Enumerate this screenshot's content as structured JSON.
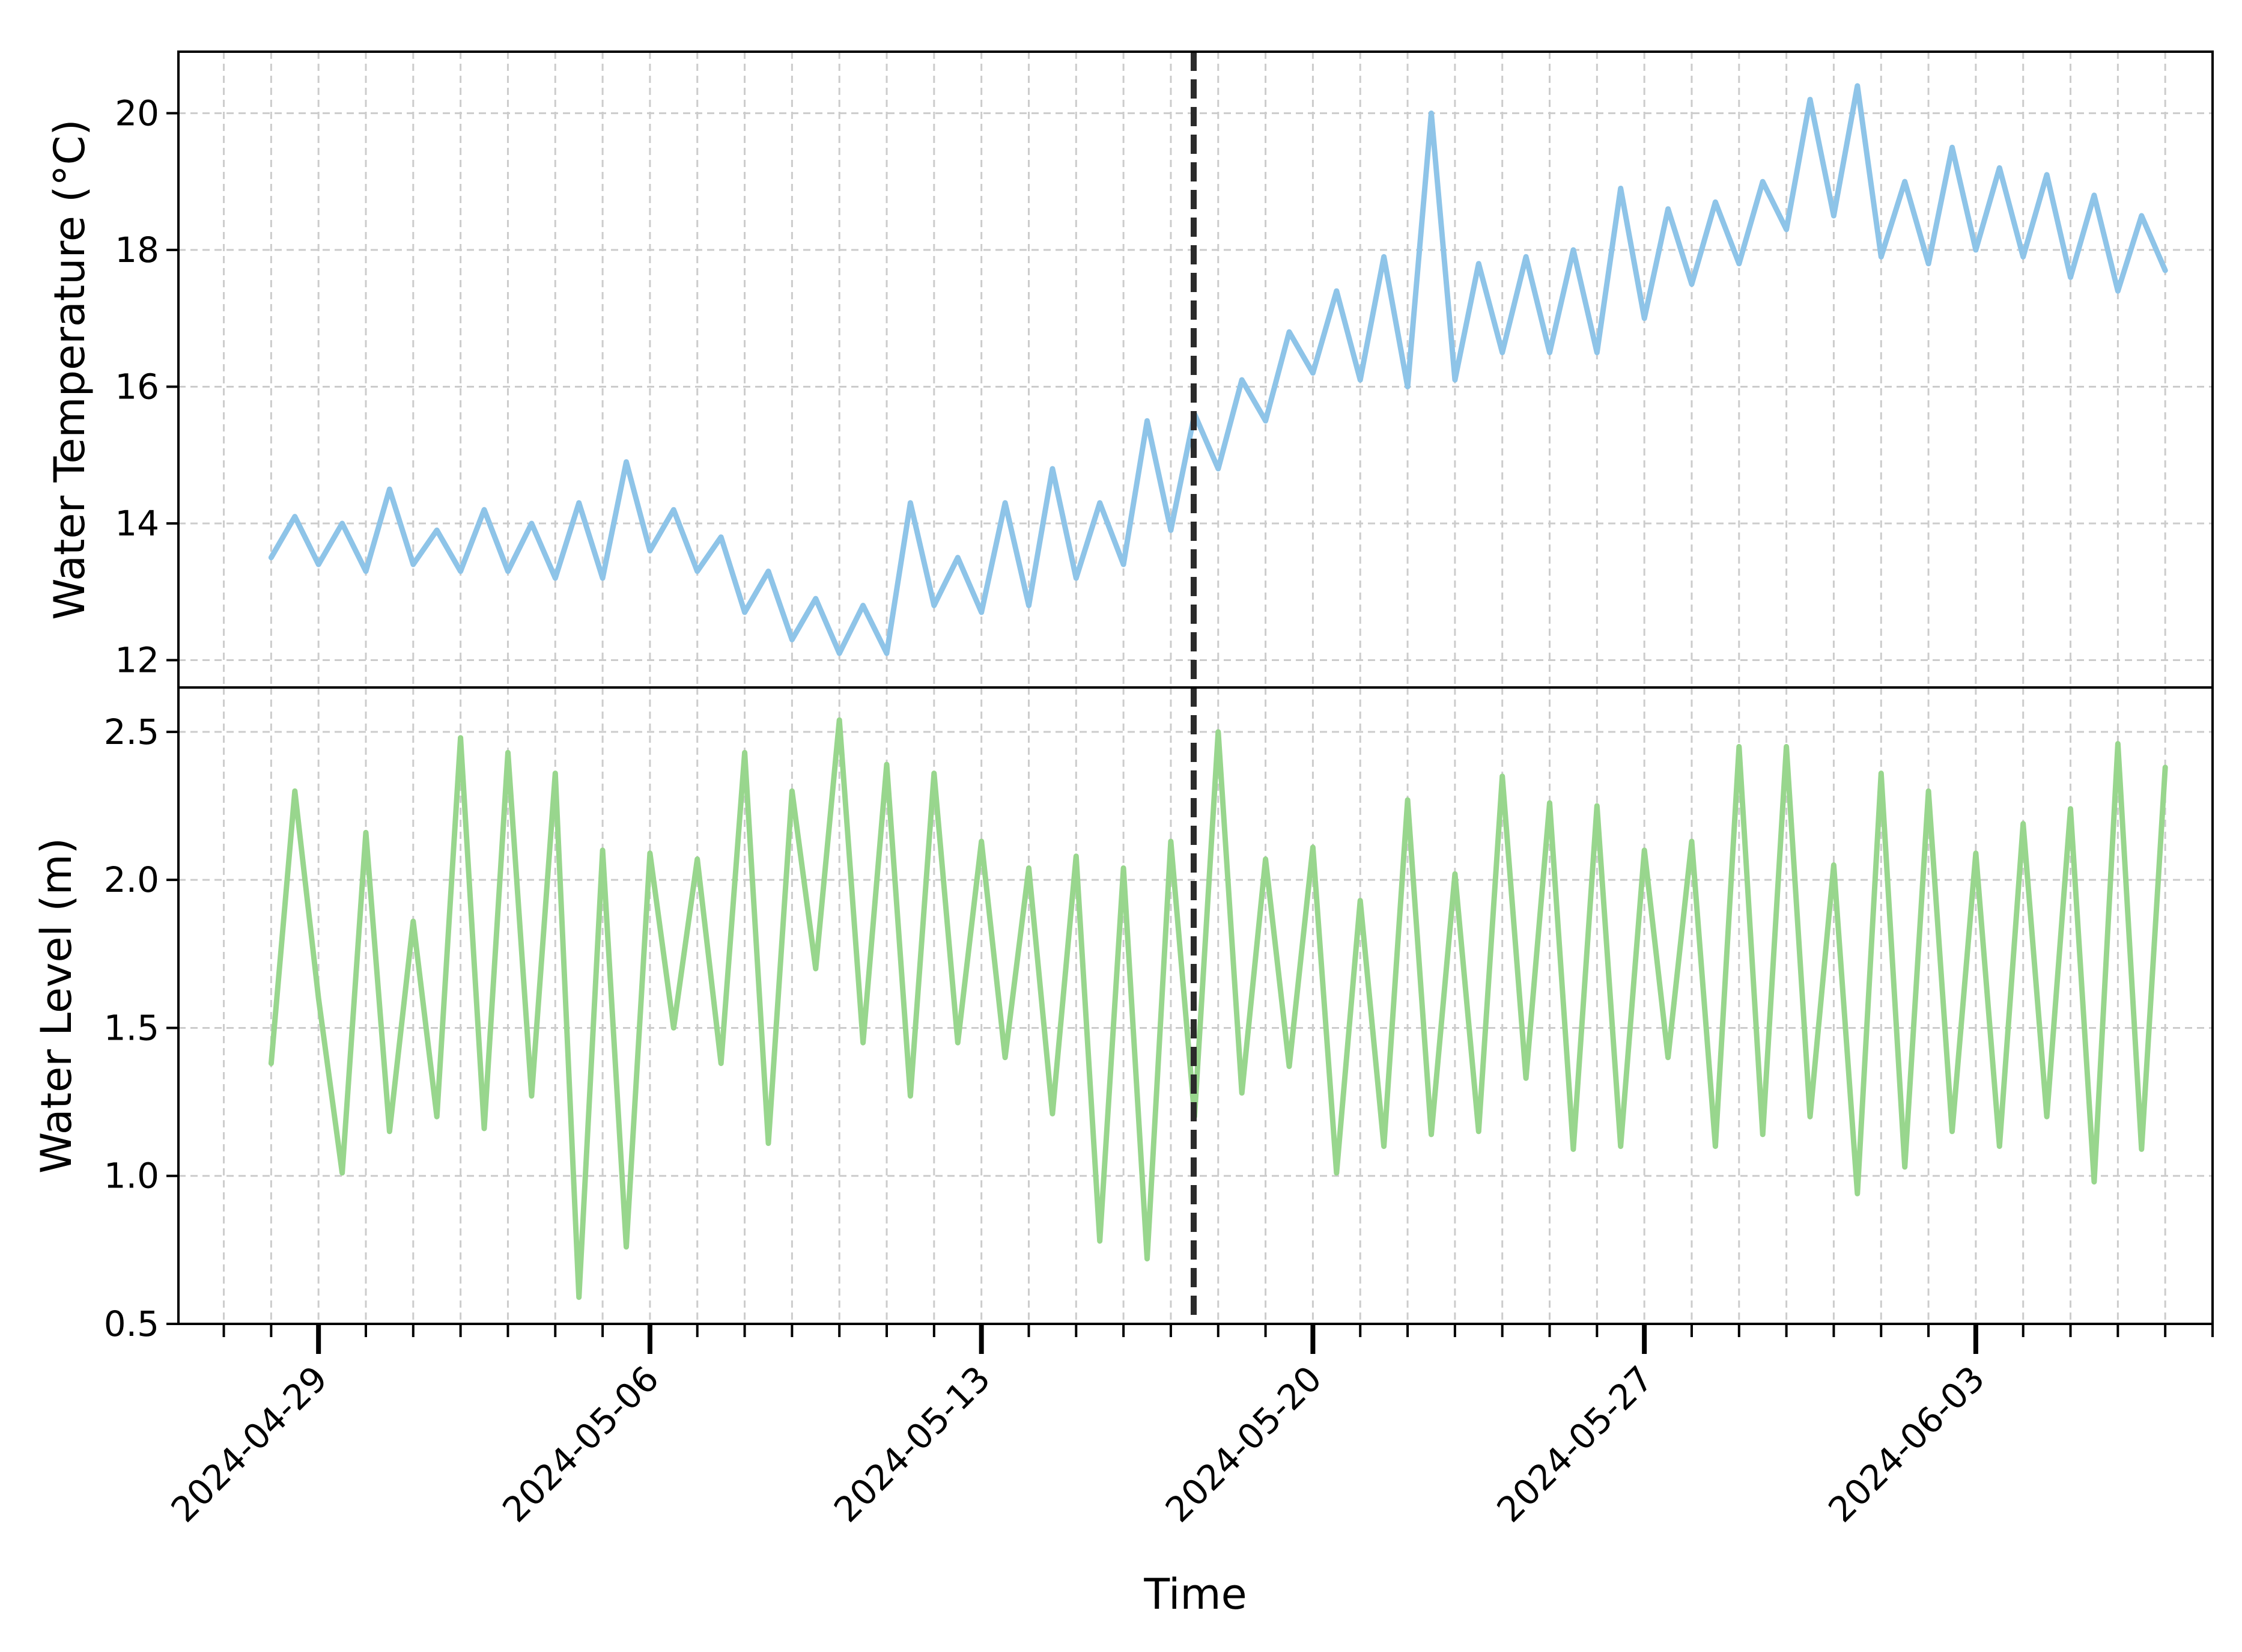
{
  "chart_data": [
    {
      "type": "line",
      "panel": "top",
      "ylabel": "Water Temperature (°C)",
      "xlabel": "",
      "ylim": [
        11.6,
        20.9
      ],
      "yticks": [
        12,
        14,
        16,
        18,
        20
      ],
      "grid": true,
      "series": [
        {
          "color": "#8ec4e8",
          "x": [
            "2024-04-28T00:00",
            "2024-04-28T12:00",
            "2024-04-29T00:00",
            "2024-04-29T12:00",
            "2024-04-30T00:00",
            "2024-04-30T12:00",
            "2024-05-01T00:00",
            "2024-05-01T12:00",
            "2024-05-02T00:00",
            "2024-05-02T12:00",
            "2024-05-03T00:00",
            "2024-05-03T12:00",
            "2024-05-04T00:00",
            "2024-05-04T12:00",
            "2024-05-05T00:00",
            "2024-05-05T12:00",
            "2024-05-06T00:00",
            "2024-05-06T12:00",
            "2024-05-07T00:00",
            "2024-05-07T12:00",
            "2024-05-08T00:00",
            "2024-05-08T12:00",
            "2024-05-09T00:00",
            "2024-05-09T12:00",
            "2024-05-10T00:00",
            "2024-05-10T12:00",
            "2024-05-11T00:00",
            "2024-05-11T12:00",
            "2024-05-12T00:00",
            "2024-05-12T12:00",
            "2024-05-13T00:00",
            "2024-05-13T12:00",
            "2024-05-14T00:00",
            "2024-05-14T12:00",
            "2024-05-15T00:00",
            "2024-05-15T12:00",
            "2024-05-16T00:00",
            "2024-05-16T12:00",
            "2024-05-17T00:00",
            "2024-05-17T12:00",
            "2024-05-18T00:00",
            "2024-05-18T12:00",
            "2024-05-19T00:00",
            "2024-05-19T12:00",
            "2024-05-20T00:00",
            "2024-05-20T12:00",
            "2024-05-21T00:00",
            "2024-05-21T12:00",
            "2024-05-22T00:00",
            "2024-05-22T12:00",
            "2024-05-23T00:00",
            "2024-05-23T12:00",
            "2024-05-24T00:00",
            "2024-05-24T12:00",
            "2024-05-25T00:00",
            "2024-05-25T12:00",
            "2024-05-26T00:00",
            "2024-05-26T12:00",
            "2024-05-27T00:00",
            "2024-05-27T12:00",
            "2024-05-28T00:00",
            "2024-05-28T12:00",
            "2024-05-29T00:00",
            "2024-05-29T12:00",
            "2024-05-30T00:00",
            "2024-05-30T12:00",
            "2024-05-31T00:00",
            "2024-05-31T12:00",
            "2024-06-01T00:00",
            "2024-06-01T12:00",
            "2024-06-02T00:00",
            "2024-06-02T12:00",
            "2024-06-03T00:00",
            "2024-06-03T12:00",
            "2024-06-04T00:00",
            "2024-06-04T12:00",
            "2024-06-05T00:00",
            "2024-06-05T12:00",
            "2024-06-06T00:00",
            "2024-06-06T12:00",
            "2024-06-07T00:00"
          ],
          "y": [
            13.5,
            14.1,
            13.4,
            14.0,
            13.3,
            14.5,
            13.4,
            13.9,
            13.3,
            14.2,
            13.3,
            14.0,
            13.2,
            14.3,
            13.2,
            14.9,
            13.6,
            14.2,
            13.3,
            13.8,
            12.7,
            13.3,
            12.3,
            12.9,
            12.1,
            12.8,
            12.1,
            14.3,
            12.8,
            13.5,
            12.7,
            14.3,
            12.8,
            14.8,
            13.2,
            14.3,
            13.4,
            15.5,
            13.9,
            15.6,
            14.8,
            16.1,
            15.5,
            16.8,
            16.2,
            17.4,
            16.1,
            17.9,
            16.0,
            20.0,
            16.1,
            17.8,
            16.5,
            17.9,
            16.5,
            18.0,
            16.5,
            18.9,
            17.0,
            18.6,
            17.5,
            18.7,
            17.8,
            19.0,
            18.3,
            20.2,
            18.5,
            20.4,
            17.9,
            19.0,
            17.8,
            19.5,
            18.0,
            19.2,
            17.9,
            19.1,
            17.6,
            18.8,
            17.4,
            18.5,
            17.7
          ]
        }
      ]
    },
    {
      "type": "line",
      "panel": "bottom",
      "ylabel": "Water Level (m)",
      "xlabel": "Time",
      "ylim": [
        0.5,
        2.65
      ],
      "yticks": [
        0.5,
        1.0,
        1.5,
        2.0,
        2.5
      ],
      "xlim": [
        "2024-04-26T01:00",
        "2024-06-08T00:00"
      ],
      "xticks": [
        "2024-04-29",
        "2024-05-06",
        "2024-05-13",
        "2024-05-20",
        "2024-05-27",
        "2024-06-03"
      ],
      "grid": true,
      "series": [
        {
          "color": "#98d68d",
          "x": [
            "2024-04-28T00:00",
            "2024-04-28T12:00",
            "2024-04-29T00:00",
            "2024-04-29T12:00",
            "2024-04-30T00:00",
            "2024-04-30T12:00",
            "2024-05-01T00:00",
            "2024-05-01T12:00",
            "2024-05-02T00:00",
            "2024-05-02T12:00",
            "2024-05-03T00:00",
            "2024-05-03T12:00",
            "2024-05-04T00:00",
            "2024-05-04T12:00",
            "2024-05-05T00:00",
            "2024-05-05T12:00",
            "2024-05-06T00:00",
            "2024-05-06T12:00",
            "2024-05-07T00:00",
            "2024-05-07T12:00",
            "2024-05-08T00:00",
            "2024-05-08T12:00",
            "2024-05-09T00:00",
            "2024-05-09T12:00",
            "2024-05-10T00:00",
            "2024-05-10T12:00",
            "2024-05-11T00:00",
            "2024-05-11T12:00",
            "2024-05-12T00:00",
            "2024-05-12T12:00",
            "2024-05-13T00:00",
            "2024-05-13T12:00",
            "2024-05-14T00:00",
            "2024-05-14T12:00",
            "2024-05-15T00:00",
            "2024-05-15T12:00",
            "2024-05-16T00:00",
            "2024-05-16T12:00",
            "2024-05-17T00:00",
            "2024-05-17T12:00",
            "2024-05-18T00:00",
            "2024-05-18T12:00",
            "2024-05-19T00:00",
            "2024-05-19T12:00",
            "2024-05-20T00:00",
            "2024-05-20T12:00",
            "2024-05-21T00:00",
            "2024-05-21T12:00",
            "2024-05-22T00:00",
            "2024-05-22T12:00",
            "2024-05-23T00:00",
            "2024-05-23T12:00",
            "2024-05-24T00:00",
            "2024-05-24T12:00",
            "2024-05-25T00:00",
            "2024-05-25T12:00",
            "2024-05-26T00:00",
            "2024-05-26T12:00",
            "2024-05-27T00:00",
            "2024-05-27T12:00",
            "2024-05-28T00:00",
            "2024-05-28T12:00",
            "2024-05-29T00:00",
            "2024-05-29T12:00",
            "2024-05-30T00:00",
            "2024-05-30T12:00",
            "2024-05-31T00:00",
            "2024-05-31T12:00",
            "2024-06-01T00:00",
            "2024-06-01T12:00",
            "2024-06-02T00:00",
            "2024-06-02T12:00",
            "2024-06-03T00:00",
            "2024-06-03T12:00",
            "2024-06-04T00:00",
            "2024-06-04T12:00",
            "2024-06-05T00:00",
            "2024-06-05T12:00",
            "2024-06-06T00:00",
            "2024-06-06T12:00",
            "2024-06-07T00:00"
          ],
          "y": [
            1.38,
            2.3,
            1.6,
            1.01,
            2.16,
            1.15,
            1.86,
            1.2,
            2.48,
            1.16,
            2.43,
            1.27,
            2.36,
            0.59,
            2.1,
            0.76,
            2.09,
            1.5,
            2.07,
            1.38,
            2.43,
            1.11,
            2.3,
            1.7,
            2.54,
            1.45,
            2.39,
            1.27,
            2.36,
            1.45,
            2.13,
            1.4,
            2.04,
            1.21,
            2.08,
            0.78,
            2.04,
            0.72,
            2.13,
            1.2,
            2.5,
            1.28,
            2.07,
            1.37,
            2.11,
            1.01,
            1.93,
            1.1,
            2.27,
            1.14,
            2.02,
            1.15,
            2.35,
            1.33,
            2.26,
            1.09,
            2.25,
            1.1,
            2.1,
            1.4,
            2.13,
            1.1,
            2.45,
            1.14,
            2.45,
            1.2,
            2.05,
            0.94,
            2.36,
            1.03,
            2.3,
            1.15,
            2.09,
            1.1,
            2.19,
            1.2,
            2.24,
            0.98,
            2.46,
            1.09,
            2.38
          ]
        }
      ]
    }
  ]
}
